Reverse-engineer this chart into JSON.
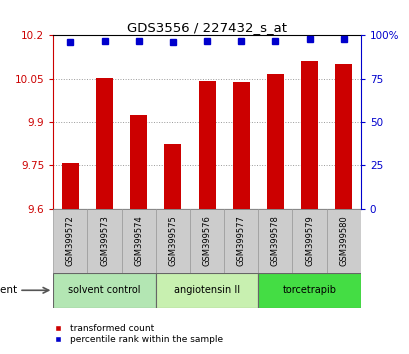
{
  "title": "GDS3556 / 227432_s_at",
  "samples": [
    "GSM399572",
    "GSM399573",
    "GSM399574",
    "GSM399575",
    "GSM399576",
    "GSM399577",
    "GSM399578",
    "GSM399579",
    "GSM399580"
  ],
  "bar_values": [
    9.757,
    10.052,
    9.924,
    9.823,
    10.043,
    10.04,
    10.067,
    10.11,
    10.101
  ],
  "percentile_values": [
    96,
    97,
    97,
    96,
    97,
    97,
    97,
    98,
    98
  ],
  "bar_color": "#cc0000",
  "percentile_color": "#0000cc",
  "ylim_left": [
    9.6,
    10.2
  ],
  "yticks_left": [
    9.6,
    9.75,
    9.9,
    10.05,
    10.2
  ],
  "ytick_labels_left": [
    "9.6",
    "9.75",
    "9.9",
    "10.05",
    "10.2"
  ],
  "ylim_right": [
    0,
    100
  ],
  "yticks_right": [
    0,
    25,
    50,
    75,
    100
  ],
  "ytick_labels_right": [
    "0",
    "25",
    "50",
    "75",
    "100%"
  ],
  "group_definitions": [
    {
      "label": "solvent control",
      "indices": [
        0,
        1,
        2
      ],
      "color": "#b3e6b3"
    },
    {
      "label": "angiotensin II",
      "indices": [
        3,
        4,
        5
      ],
      "color": "#c8f0b0"
    },
    {
      "label": "torcetrapib",
      "indices": [
        6,
        7,
        8
      ],
      "color": "#44dd44"
    }
  ],
  "agent_label": "agent",
  "legend_bar_label": "transformed count",
  "legend_pct_label": "percentile rank within the sample",
  "grid_color": "#999999",
  "bar_width": 0.5,
  "sample_box_color": "#cccccc",
  "sample_box_edge": "#999999"
}
